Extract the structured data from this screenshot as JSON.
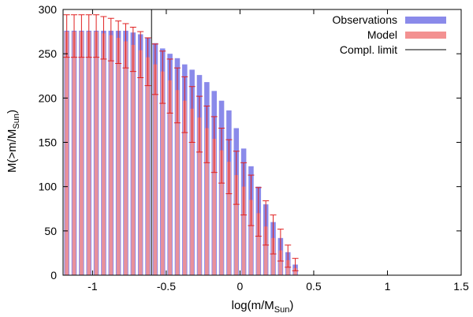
{
  "chart_data": {
    "type": "bar",
    "title": "",
    "xlabel": "log(m/M",
    "xlabel_sub": "Sun",
    "xlabel_close": ")",
    "ylabel": "M(>m/M",
    "ylabel_sub": "Sun",
    "ylabel_close": ")",
    "xlim": [
      -1.2,
      1.5
    ],
    "ylim": [
      0,
      300
    ],
    "xticks": [
      {
        "value": -1,
        "label": "-1"
      },
      {
        "value": -0.5,
        "label": "-0.5"
      },
      {
        "value": 0,
        "label": "0"
      },
      {
        "value": 0.5,
        "label": "0.5"
      },
      {
        "value": 1,
        "label": "1"
      },
      {
        "value": 1.5,
        "label": "1.5"
      }
    ],
    "yticks": [
      {
        "value": 0,
        "label": "0"
      },
      {
        "value": 50,
        "label": "50"
      },
      {
        "value": 100,
        "label": "100"
      },
      {
        "value": 150,
        "label": "150"
      },
      {
        "value": 200,
        "label": "200"
      },
      {
        "value": 250,
        "label": "250"
      },
      {
        "value": 300,
        "label": "300"
      }
    ],
    "bin_width": 0.05,
    "x": [
      -1.175,
      -1.125,
      -1.075,
      -1.025,
      -0.975,
      -0.925,
      -0.875,
      -0.825,
      -0.775,
      -0.725,
      -0.675,
      -0.625,
      -0.575,
      -0.525,
      -0.475,
      -0.425,
      -0.375,
      -0.325,
      -0.275,
      -0.225,
      -0.175,
      -0.125,
      -0.075,
      -0.025,
      0.025,
      0.075,
      0.125,
      0.175,
      0.225,
      0.275,
      0.325,
      0.375
    ],
    "series": [
      {
        "name": "Observations",
        "color": "#8a8aea",
        "values": [
          276,
          276,
          276,
          276,
          276,
          276,
          276,
          276,
          276,
          274,
          272,
          268,
          262,
          256,
          250,
          245,
          238,
          232,
          226,
          218,
          208,
          197,
          186,
          166,
          143,
          123,
          100,
          80,
          60,
          42,
          26,
          12
        ]
      },
      {
        "name": "Model",
        "color": "#f39191",
        "values": [
          275,
          275,
          275,
          275,
          275,
          273,
          271,
          268,
          264,
          260,
          254,
          246,
          238,
          230,
          220,
          209,
          197,
          188,
          178,
          166,
          154,
          141,
          128,
          113,
          100,
          85,
          70,
          55,
          42,
          28,
          17,
          8
        ],
        "err_low": [
          246,
          246,
          246,
          246,
          246,
          244,
          242,
          239,
          234,
          230,
          223,
          214,
          204,
          194,
          183,
          172,
          161,
          150,
          139,
          127,
          116,
          104,
          92,
          80,
          68,
          56,
          44,
          34,
          24,
          16,
          9,
          5
        ],
        "err_high": [
          294,
          294,
          294,
          294,
          294,
          292,
          290,
          287,
          284,
          280,
          275,
          268,
          261,
          253,
          244,
          234,
          224,
          213,
          202,
          191,
          179,
          166,
          153,
          140,
          127,
          113,
          99,
          84,
          68,
          52,
          34,
          19
        ]
      }
    ],
    "completeness_limit": {
      "name": "Compl. limit",
      "x": -0.6,
      "color": "#000000"
    },
    "legend_position": "top-right",
    "error_bar_color": "#e02020"
  }
}
